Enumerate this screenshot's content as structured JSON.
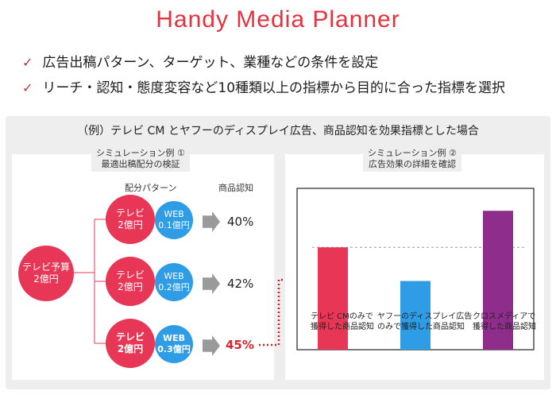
{
  "header": {
    "title": "Handy Media Planner",
    "bullets": [
      "広告出稿パターン、ターゲット、業種などの条件を設定",
      "リーチ・認知・態度変容など10種類以上の指標から目的に合った指標を選択"
    ]
  },
  "panel": {
    "heading": "（例）テレビ CM とヤフーのディスプレイ広告、商品認知を効果指標とした場合",
    "left": {
      "label_line1": "シミュレーション例 ①",
      "label_line2": "最適出稿配分の検証",
      "col_pattern": "配分パターン",
      "col_awareness": "商品認知",
      "budget_line1": "テレビ予算",
      "budget_line2": "2億円",
      "rows": [
        {
          "tv1": "テレビ",
          "tv2": "2億円",
          "web1": "WEB",
          "web2": "0.1億円",
          "pct": "40%"
        },
        {
          "tv1": "テレビ",
          "tv2": "2億円",
          "web1": "WEB",
          "web2": "0.2億円",
          "pct": "42%"
        },
        {
          "tv1": "テレビ",
          "tv2": "2億円",
          "web1": "WEB",
          "web2": "0.3億円",
          "pct": "45%"
        }
      ]
    },
    "right": {
      "label_line1": "シミュレーション例 ②",
      "label_line2": "広告効果の詳細を確認"
    }
  },
  "chart_data": {
    "type": "bar",
    "categories": [
      [
        "テレビ CMのみで",
        "獲得した商品認知"
      ],
      [
        "ヤフーのディスプレイ広告",
        "のみで獲得した商品認知"
      ],
      [
        "クロスメディアで",
        "獲得した商品認知"
      ]
    ],
    "values": [
      70,
      47,
      95
    ],
    "ylim": [
      0,
      100
    ],
    "reference_line": 70,
    "colors": [
      "#e83656",
      "#2f9de6",
      "#8e2d8c"
    ],
    "grid": false
  }
}
